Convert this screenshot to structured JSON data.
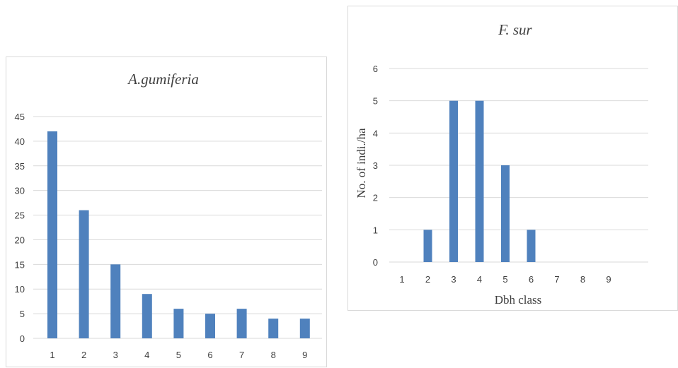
{
  "chart_data": [
    {
      "type": "bar",
      "title": "A.gumiferia",
      "xlabel": "",
      "ylabel": "",
      "categories": [
        "1",
        "2",
        "3",
        "4",
        "5",
        "6",
        "7",
        "8",
        "9"
      ],
      "values": [
        42,
        26,
        15,
        9,
        6,
        5,
        6,
        4,
        4
      ],
      "ylim": [
        0,
        45
      ],
      "yticks": [
        "0",
        "5",
        "10",
        "15",
        "20",
        "25",
        "30",
        "35",
        "40",
        "45"
      ],
      "grid": true,
      "bar_color": "#4f81bd"
    },
    {
      "type": "bar",
      "title": "F. sur",
      "xlabel": "Dbh class",
      "ylabel": "No. of indi./ha",
      "categories": [
        "1",
        "2",
        "3",
        "4",
        "5",
        "6",
        "7",
        "8",
        "9"
      ],
      "values": [
        0,
        1,
        5,
        5,
        3,
        1,
        0,
        0,
        0
      ],
      "ylim": [
        0,
        6
      ],
      "yticks": [
        "0",
        "1",
        "2",
        "3",
        "4",
        "5",
        "6"
      ],
      "grid": true,
      "bar_color": "#4f81bd"
    }
  ]
}
